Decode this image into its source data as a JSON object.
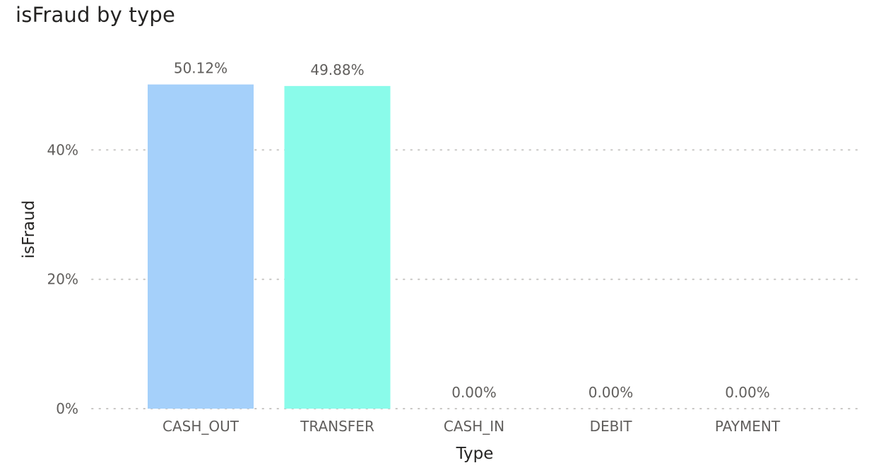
{
  "chart_data": {
    "type": "bar",
    "title": "isFraud by type",
    "xlabel": "Type",
    "ylabel": "isFraud",
    "categories": [
      "CASH_OUT",
      "TRANSFER",
      "CASH_IN",
      "DEBIT",
      "PAYMENT"
    ],
    "values": [
      50.12,
      49.88,
      0.0,
      0.0,
      0.0
    ],
    "data_labels": [
      "50.12%",
      "49.88%",
      "0.00%",
      "0.00%",
      "0.00%"
    ],
    "bar_colors": [
      "#a5d0fa",
      "#8afbea",
      "#a5d0fa",
      "#a5d0fa",
      "#a5d0fa"
    ],
    "ylim": [
      0,
      50.12
    ],
    "yticks": [
      0,
      20,
      40
    ],
    "ytick_labels": [
      "0%",
      "20%",
      "40%"
    ],
    "grid": true,
    "legend": "none"
  }
}
